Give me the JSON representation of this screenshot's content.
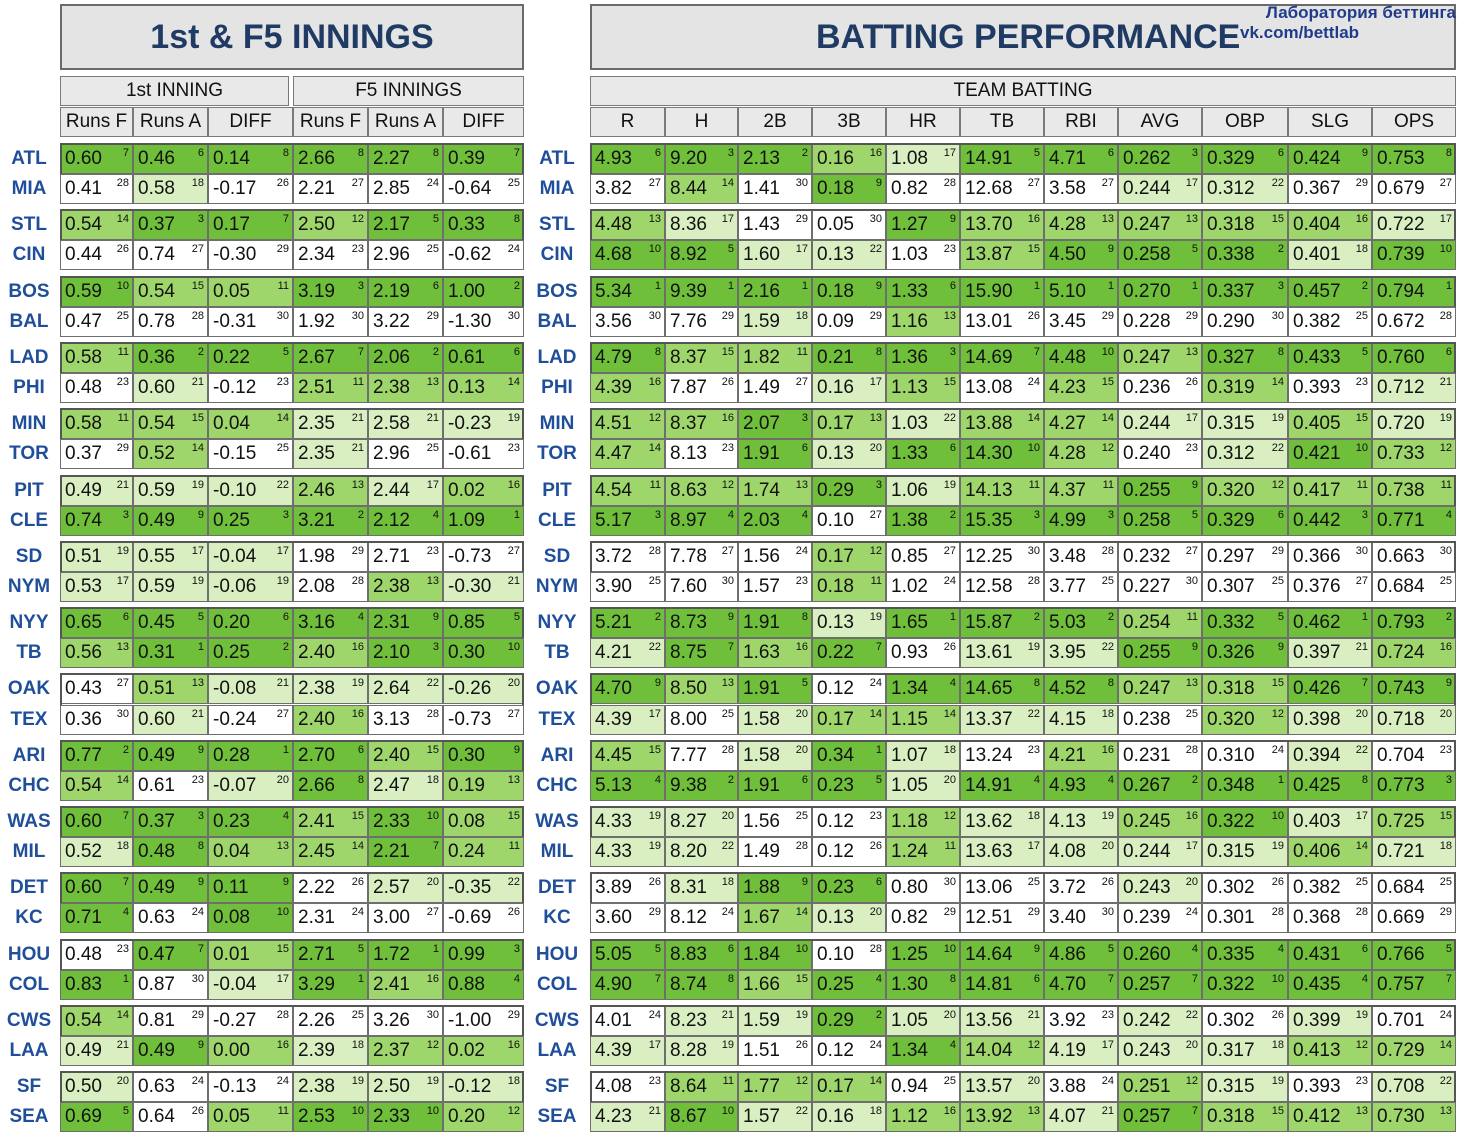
{
  "headers": {
    "left_title": "1st & F5 INNINGS",
    "right_title": "BATTING PERFORMANCE",
    "inning1": "1st INNING",
    "f5": "F5 INNINGS",
    "team_batting": "TEAM BATTING",
    "left_cols": [
      "Runs F",
      "Runs A",
      "DIFF",
      "Runs F",
      "Runs A",
      "DIFF"
    ],
    "right_cols": [
      "R",
      "H",
      "2B",
      "3B",
      "HR",
      "TB",
      "RBI",
      "AVG",
      "OBP",
      "SLG",
      "OPS"
    ]
  },
  "watermark": {
    "line1": "Лаборатория беттинга",
    "line2": "vk.com/bettlab"
  },
  "colors": {
    "dark": "#6fbf3a",
    "mid": "#9fd66b",
    "light": "#d9efc2",
    "white": "#ffffff"
  },
  "rows": [
    {
      "team": "ATL",
      "left": [
        "0.60",
        "7",
        "0.46",
        "6",
        "0.14",
        "8",
        "2.66",
        "8",
        "2.27",
        "8",
        "0.39",
        "7"
      ],
      "right": [
        "4.93",
        "6",
        "9.20",
        "3",
        "2.13",
        "2",
        "0.16",
        "16",
        "1.08",
        "17",
        "14.91",
        "5",
        "4.71",
        "6",
        "0.262",
        "3",
        "0.329",
        "6",
        "0.424",
        "9",
        "0.753",
        "8"
      ]
    },
    {
      "team": "MIA",
      "left": [
        "0.41",
        "28",
        "0.58",
        "18",
        "-0.17",
        "26",
        "2.21",
        "27",
        "2.85",
        "24",
        "-0.64",
        "25"
      ],
      "right": [
        "3.82",
        "27",
        "8.44",
        "14",
        "1.41",
        "30",
        "0.18",
        "9",
        "0.82",
        "28",
        "12.68",
        "27",
        "3.58",
        "27",
        "0.244",
        "17",
        "0.312",
        "22",
        "0.367",
        "29",
        "0.679",
        "27"
      ]
    },
    {
      "team": "STL",
      "left": [
        "0.54",
        "14",
        "0.37",
        "3",
        "0.17",
        "7",
        "2.50",
        "12",
        "2.17",
        "5",
        "0.33",
        "8"
      ],
      "right": [
        "4.48",
        "13",
        "8.36",
        "17",
        "1.43",
        "29",
        "0.05",
        "30",
        "1.27",
        "9",
        "13.70",
        "16",
        "4.28",
        "13",
        "0.247",
        "13",
        "0.318",
        "15",
        "0.404",
        "16",
        "0.722",
        "17"
      ]
    },
    {
      "team": "CIN",
      "left": [
        "0.44",
        "26",
        "0.74",
        "27",
        "-0.30",
        "29",
        "2.34",
        "23",
        "2.96",
        "25",
        "-0.62",
        "24"
      ],
      "right": [
        "4.68",
        "10",
        "8.92",
        "5",
        "1.60",
        "17",
        "0.13",
        "22",
        "1.03",
        "23",
        "13.87",
        "15",
        "4.50",
        "9",
        "0.258",
        "5",
        "0.338",
        "2",
        "0.401",
        "18",
        "0.739",
        "10"
      ]
    },
    {
      "team": "BOS",
      "left": [
        "0.59",
        "10",
        "0.54",
        "15",
        "0.05",
        "11",
        "3.19",
        "3",
        "2.19",
        "6",
        "1.00",
        "2"
      ],
      "right": [
        "5.34",
        "1",
        "9.39",
        "1",
        "2.16",
        "1",
        "0.18",
        "9",
        "1.33",
        "6",
        "15.90",
        "1",
        "5.10",
        "1",
        "0.270",
        "1",
        "0.337",
        "3",
        "0.457",
        "2",
        "0.794",
        "1"
      ]
    },
    {
      "team": "BAL",
      "left": [
        "0.47",
        "25",
        "0.78",
        "28",
        "-0.31",
        "30",
        "1.92",
        "30",
        "3.22",
        "29",
        "-1.30",
        "30"
      ],
      "right": [
        "3.56",
        "30",
        "7.76",
        "29",
        "1.59",
        "18",
        "0.09",
        "29",
        "1.16",
        "13",
        "13.01",
        "26",
        "3.45",
        "29",
        "0.228",
        "29",
        "0.290",
        "30",
        "0.382",
        "25",
        "0.672",
        "28"
      ]
    },
    {
      "team": "LAD",
      "left": [
        "0.58",
        "11",
        "0.36",
        "2",
        "0.22",
        "5",
        "2.67",
        "7",
        "2.06",
        "2",
        "0.61",
        "6"
      ],
      "right": [
        "4.79",
        "8",
        "8.37",
        "15",
        "1.82",
        "11",
        "0.21",
        "8",
        "1.36",
        "3",
        "14.69",
        "7",
        "4.48",
        "10",
        "0.247",
        "13",
        "0.327",
        "8",
        "0.433",
        "5",
        "0.760",
        "6"
      ]
    },
    {
      "team": "PHI",
      "left": [
        "0.48",
        "23",
        "0.60",
        "21",
        "-0.12",
        "23",
        "2.51",
        "11",
        "2.38",
        "13",
        "0.13",
        "14"
      ],
      "right": [
        "4.39",
        "16",
        "7.87",
        "26",
        "1.49",
        "27",
        "0.16",
        "17",
        "1.13",
        "15",
        "13.08",
        "24",
        "4.23",
        "15",
        "0.236",
        "26",
        "0.319",
        "14",
        "0.393",
        "23",
        "0.712",
        "21"
      ]
    },
    {
      "team": "MIN",
      "left": [
        "0.58",
        "11",
        "0.54",
        "15",
        "0.04",
        "14",
        "2.35",
        "21",
        "2.58",
        "21",
        "-0.23",
        "19"
      ],
      "right": [
        "4.51",
        "12",
        "8.37",
        "16",
        "2.07",
        "3",
        "0.17",
        "13",
        "1.03",
        "22",
        "13.88",
        "14",
        "4.27",
        "14",
        "0.244",
        "17",
        "0.315",
        "19",
        "0.405",
        "15",
        "0.720",
        "19"
      ]
    },
    {
      "team": "TOR",
      "left": [
        "0.37",
        "29",
        "0.52",
        "14",
        "-0.15",
        "25",
        "2.35",
        "21",
        "2.96",
        "25",
        "-0.61",
        "23"
      ],
      "right": [
        "4.47",
        "14",
        "8.13",
        "23",
        "1.91",
        "6",
        "0.13",
        "20",
        "1.33",
        "6",
        "14.30",
        "10",
        "4.28",
        "12",
        "0.240",
        "23",
        "0.312",
        "22",
        "0.421",
        "10",
        "0.733",
        "12"
      ]
    },
    {
      "team": "PIT",
      "left": [
        "0.49",
        "21",
        "0.59",
        "19",
        "-0.10",
        "22",
        "2.46",
        "13",
        "2.44",
        "17",
        "0.02",
        "16"
      ],
      "right": [
        "4.54",
        "11",
        "8.63",
        "12",
        "1.74",
        "13",
        "0.29",
        "3",
        "1.06",
        "19",
        "14.13",
        "11",
        "4.37",
        "11",
        "0.255",
        "9",
        "0.320",
        "12",
        "0.417",
        "11",
        "0.738",
        "11"
      ]
    },
    {
      "team": "CLE",
      "left": [
        "0.74",
        "3",
        "0.49",
        "9",
        "0.25",
        "3",
        "3.21",
        "2",
        "2.12",
        "4",
        "1.09",
        "1"
      ],
      "right": [
        "5.17",
        "3",
        "8.97",
        "4",
        "2.03",
        "4",
        "0.10",
        "27",
        "1.38",
        "2",
        "15.35",
        "3",
        "4.99",
        "3",
        "0.258",
        "5",
        "0.329",
        "6",
        "0.442",
        "3",
        "0.771",
        "4"
      ]
    },
    {
      "team": "SD",
      "left": [
        "0.51",
        "19",
        "0.55",
        "17",
        "-0.04",
        "17",
        "1.98",
        "29",
        "2.71",
        "23",
        "-0.73",
        "27"
      ],
      "right": [
        "3.72",
        "28",
        "7.78",
        "27",
        "1.56",
        "24",
        "0.17",
        "12",
        "0.85",
        "27",
        "12.25",
        "30",
        "3.48",
        "28",
        "0.232",
        "27",
        "0.297",
        "29",
        "0.366",
        "30",
        "0.663",
        "30"
      ]
    },
    {
      "team": "NYM",
      "left": [
        "0.53",
        "17",
        "0.59",
        "19",
        "-0.06",
        "19",
        "2.08",
        "28",
        "2.38",
        "13",
        "-0.30",
        "21"
      ],
      "right": [
        "3.90",
        "25",
        "7.60",
        "30",
        "1.57",
        "23",
        "0.18",
        "11",
        "1.02",
        "24",
        "12.58",
        "28",
        "3.77",
        "25",
        "0.227",
        "30",
        "0.307",
        "25",
        "0.376",
        "27",
        "0.684",
        "25"
      ]
    },
    {
      "team": "NYY",
      "left": [
        "0.65",
        "6",
        "0.45",
        "5",
        "0.20",
        "6",
        "3.16",
        "4",
        "2.31",
        "9",
        "0.85",
        "5"
      ],
      "right": [
        "5.21",
        "2",
        "8.73",
        "9",
        "1.91",
        "8",
        "0.13",
        "19",
        "1.65",
        "1",
        "15.87",
        "2",
        "5.03",
        "2",
        "0.254",
        "11",
        "0.332",
        "5",
        "0.462",
        "1",
        "0.793",
        "2"
      ]
    },
    {
      "team": "TB",
      "left": [
        "0.56",
        "13",
        "0.31",
        "1",
        "0.25",
        "2",
        "2.40",
        "16",
        "2.10",
        "3",
        "0.30",
        "10"
      ],
      "right": [
        "4.21",
        "22",
        "8.75",
        "7",
        "1.63",
        "16",
        "0.22",
        "7",
        "0.93",
        "26",
        "13.61",
        "19",
        "3.95",
        "22",
        "0.255",
        "9",
        "0.326",
        "9",
        "0.397",
        "21",
        "0.724",
        "16"
      ]
    },
    {
      "team": "OAK",
      "left": [
        "0.43",
        "27",
        "0.51",
        "13",
        "-0.08",
        "21",
        "2.38",
        "19",
        "2.64",
        "22",
        "-0.26",
        "20"
      ],
      "right": [
        "4.70",
        "9",
        "8.50",
        "13",
        "1.91",
        "5",
        "0.12",
        "24",
        "1.34",
        "4",
        "14.65",
        "8",
        "4.52",
        "8",
        "0.247",
        "13",
        "0.318",
        "15",
        "0.426",
        "7",
        "0.743",
        "9"
      ]
    },
    {
      "team": "TEX",
      "left": [
        "0.36",
        "30",
        "0.60",
        "21",
        "-0.24",
        "27",
        "2.40",
        "16",
        "3.13",
        "28",
        "-0.73",
        "27"
      ],
      "right": [
        "4.39",
        "17",
        "8.00",
        "25",
        "1.58",
        "20",
        "0.17",
        "14",
        "1.15",
        "14",
        "13.37",
        "22",
        "4.15",
        "18",
        "0.238",
        "25",
        "0.320",
        "12",
        "0.398",
        "20",
        "0.718",
        "20"
      ]
    },
    {
      "team": "ARI",
      "left": [
        "0.77",
        "2",
        "0.49",
        "9",
        "0.28",
        "1",
        "2.70",
        "6",
        "2.40",
        "15",
        "0.30",
        "9"
      ],
      "right": [
        "4.45",
        "15",
        "7.77",
        "28",
        "1.58",
        "20",
        "0.34",
        "1",
        "1.07",
        "18",
        "13.24",
        "23",
        "4.21",
        "16",
        "0.231",
        "28",
        "0.310",
        "24",
        "0.394",
        "22",
        "0.704",
        "23"
      ]
    },
    {
      "team": "CHC",
      "left": [
        "0.54",
        "14",
        "0.61",
        "23",
        "-0.07",
        "20",
        "2.66",
        "8",
        "2.47",
        "18",
        "0.19",
        "13"
      ],
      "right": [
        "5.13",
        "4",
        "9.38",
        "2",
        "1.91",
        "6",
        "0.23",
        "5",
        "1.05",
        "20",
        "14.91",
        "4",
        "4.93",
        "4",
        "0.267",
        "2",
        "0.348",
        "1",
        "0.425",
        "8",
        "0.773",
        "3"
      ]
    },
    {
      "team": "WAS",
      "left": [
        "0.60",
        "7",
        "0.37",
        "3",
        "0.23",
        "4",
        "2.41",
        "15",
        "2.33",
        "10",
        "0.08",
        "15"
      ],
      "right": [
        "4.33",
        "19",
        "8.27",
        "20",
        "1.56",
        "25",
        "0.12",
        "23",
        "1.18",
        "12",
        "13.62",
        "18",
        "4.13",
        "19",
        "0.245",
        "16",
        "0.322",
        "10",
        "0.403",
        "17",
        "0.725",
        "15"
      ]
    },
    {
      "team": "MIL",
      "left": [
        "0.52",
        "18",
        "0.48",
        "8",
        "0.04",
        "13",
        "2.45",
        "14",
        "2.21",
        "7",
        "0.24",
        "11"
      ],
      "right": [
        "4.33",
        "19",
        "8.20",
        "22",
        "1.49",
        "28",
        "0.12",
        "26",
        "1.24",
        "11",
        "13.63",
        "17",
        "4.08",
        "20",
        "0.244",
        "17",
        "0.315",
        "19",
        "0.406",
        "14",
        "0.721",
        "18"
      ]
    },
    {
      "team": "DET",
      "left": [
        "0.60",
        "7",
        "0.49",
        "9",
        "0.11",
        "9",
        "2.22",
        "26",
        "2.57",
        "20",
        "-0.35",
        "22"
      ],
      "right": [
        "3.89",
        "26",
        "8.31",
        "18",
        "1.88",
        "9",
        "0.23",
        "6",
        "0.80",
        "30",
        "13.06",
        "25",
        "3.72",
        "26",
        "0.243",
        "20",
        "0.302",
        "26",
        "0.382",
        "25",
        "0.684",
        "25"
      ]
    },
    {
      "team": "KC",
      "left": [
        "0.71",
        "4",
        "0.63",
        "24",
        "0.08",
        "10",
        "2.31",
        "24",
        "3.00",
        "27",
        "-0.69",
        "26"
      ],
      "right": [
        "3.60",
        "29",
        "8.12",
        "24",
        "1.67",
        "14",
        "0.13",
        "20",
        "0.82",
        "29",
        "12.51",
        "29",
        "3.40",
        "30",
        "0.239",
        "24",
        "0.301",
        "28",
        "0.368",
        "28",
        "0.669",
        "29"
      ]
    },
    {
      "team": "HOU",
      "left": [
        "0.48",
        "23",
        "0.47",
        "7",
        "0.01",
        "15",
        "2.71",
        "5",
        "1.72",
        "1",
        "0.99",
        "3"
      ],
      "right": [
        "5.05",
        "5",
        "8.83",
        "6",
        "1.84",
        "10",
        "0.10",
        "28",
        "1.25",
        "10",
        "14.64",
        "9",
        "4.86",
        "5",
        "0.260",
        "4",
        "0.335",
        "4",
        "0.431",
        "6",
        "0.766",
        "5"
      ]
    },
    {
      "team": "COL",
      "left": [
        "0.83",
        "1",
        "0.87",
        "30",
        "-0.04",
        "17",
        "3.29",
        "1",
        "2.41",
        "16",
        "0.88",
        "4"
      ],
      "right": [
        "4.90",
        "7",
        "8.74",
        "8",
        "1.66",
        "15",
        "0.25",
        "4",
        "1.30",
        "8",
        "14.81",
        "6",
        "4.70",
        "7",
        "0.257",
        "7",
        "0.322",
        "10",
        "0.435",
        "4",
        "0.757",
        "7"
      ]
    },
    {
      "team": "CWS",
      "left": [
        "0.54",
        "14",
        "0.81",
        "29",
        "-0.27",
        "28",
        "2.26",
        "25",
        "3.26",
        "30",
        "-1.00",
        "29"
      ],
      "right": [
        "4.01",
        "24",
        "8.23",
        "21",
        "1.59",
        "19",
        "0.29",
        "2",
        "1.05",
        "20",
        "13.56",
        "21",
        "3.92",
        "23",
        "0.242",
        "22",
        "0.302",
        "26",
        "0.399",
        "19",
        "0.701",
        "24"
      ]
    },
    {
      "team": "LAA",
      "left": [
        "0.49",
        "21",
        "0.49",
        "9",
        "0.00",
        "16",
        "2.39",
        "18",
        "2.37",
        "12",
        "0.02",
        "16"
      ],
      "right": [
        "4.39",
        "17",
        "8.28",
        "19",
        "1.51",
        "26",
        "0.12",
        "24",
        "1.34",
        "4",
        "14.04",
        "12",
        "4.19",
        "17",
        "0.243",
        "20",
        "0.317",
        "18",
        "0.413",
        "12",
        "0.729",
        "14"
      ]
    },
    {
      "team": "SF",
      "left": [
        "0.50",
        "20",
        "0.63",
        "24",
        "-0.13",
        "24",
        "2.38",
        "19",
        "2.50",
        "19",
        "-0.12",
        "18"
      ],
      "right": [
        "4.08",
        "23",
        "8.64",
        "11",
        "1.77",
        "12",
        "0.17",
        "14",
        "0.94",
        "25",
        "13.57",
        "20",
        "3.88",
        "24",
        "0.251",
        "12",
        "0.315",
        "19",
        "0.393",
        "23",
        "0.708",
        "22"
      ]
    },
    {
      "team": "SEA",
      "left": [
        "0.69",
        "5",
        "0.64",
        "26",
        "0.05",
        "11",
        "2.53",
        "10",
        "2.33",
        "10",
        "0.20",
        "12"
      ],
      "right": [
        "4.23",
        "21",
        "8.67",
        "10",
        "1.57",
        "22",
        "0.16",
        "18",
        "1.12",
        "16",
        "13.92",
        "13",
        "4.07",
        "21",
        "0.257",
        "7",
        "0.318",
        "15",
        "0.412",
        "13",
        "0.730",
        "13"
      ]
    }
  ]
}
